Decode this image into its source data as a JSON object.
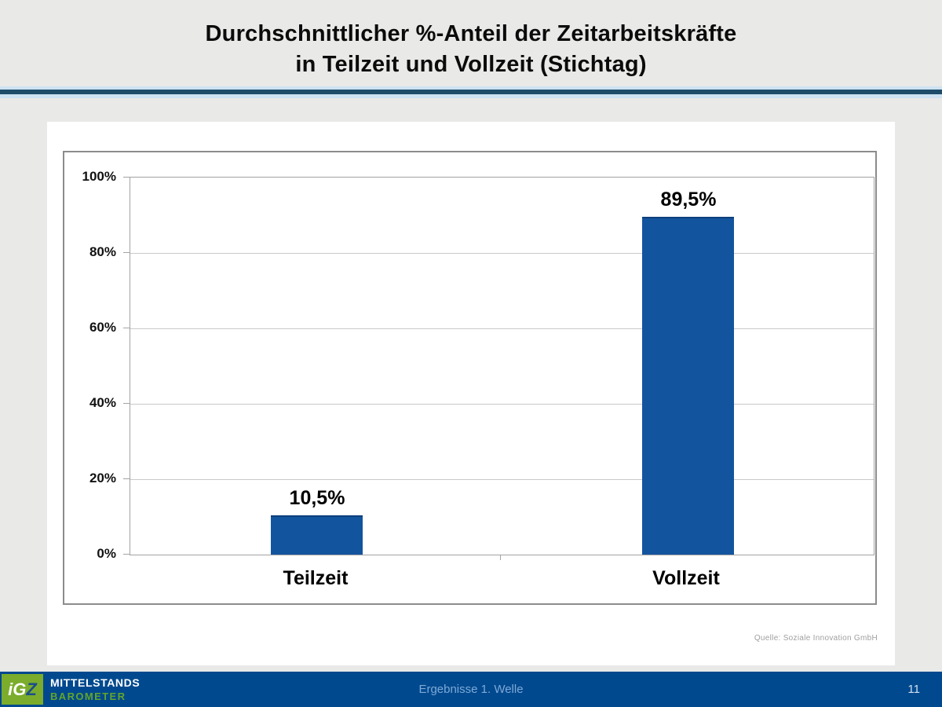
{
  "slide": {
    "title_line1": "Durchschnittlicher %-Anteil der Zeitarbeitskräfte",
    "title_line2": "in Teilzeit und Vollzeit (Stichtag)",
    "source_note": "Quelle: Soziale Innovation GmbH"
  },
  "chart_data": {
    "type": "bar",
    "title": "Durchschnittlicher %-Anteil der Zeitarbeitskräfte in Teilzeit und Vollzeit (Stichtag)",
    "categories": [
      "Teilzeit",
      "Vollzeit"
    ],
    "values": [
      10.5,
      89.5
    ],
    "value_labels": [
      "10,5%",
      "89,5%"
    ],
    "xlabel": "",
    "ylabel": "",
    "ylim": [
      0,
      100
    ],
    "yticks": [
      "0%",
      "20%",
      "40%",
      "60%",
      "80%",
      "100%"
    ],
    "grid": true,
    "legend_position": "none",
    "bar_color": "#13549e"
  },
  "footer": {
    "logo_ig": "iG",
    "logo_z": "Z",
    "logo_line1": "MITTELSTANDS",
    "logo_line2": "BAROMETER",
    "center_text": "Ergebnisse 1. Welle",
    "page_number": "11"
  },
  "colors": {
    "bar": "#13549e",
    "footer_bg": "#00498e",
    "divider_dark": "#1e4d6a",
    "divider_light": "#cde2f2",
    "logo_green": "#7bac2b",
    "page_bg": "#e9e9e7"
  }
}
